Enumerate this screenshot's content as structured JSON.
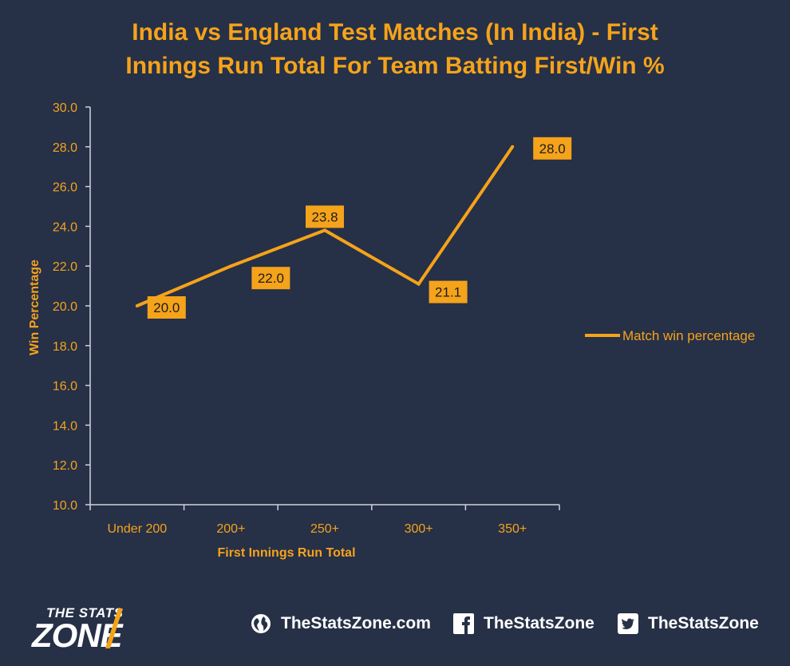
{
  "title_line1": "India vs England Test Matches (In India) - First",
  "title_line2": "Innings Run Total For Team Batting First/Win %",
  "colors": {
    "background": "#263047",
    "accent": "#f5a31a",
    "axis": "#cfd3dc",
    "label_text": "#1d1d1d"
  },
  "chart_data": {
    "type": "line",
    "categories": [
      "Under 200",
      "200+",
      "250+",
      "300+",
      "350+"
    ],
    "series": [
      {
        "name": "Match win percentage",
        "values": [
          20.0,
          22.0,
          23.8,
          21.1,
          28.0
        ]
      }
    ],
    "data_labels": [
      "20.0",
      "22.0",
      "23.8",
      "21.1",
      "28.0"
    ],
    "xlabel": "First Innings Run Total",
    "ylabel": "Win Percentage",
    "ylim": [
      10,
      30
    ],
    "yticks": [
      "10.0",
      "12.0",
      "14.0",
      "16.0",
      "18.0",
      "20.0",
      "22.0",
      "24.0",
      "26.0",
      "28.0",
      "30.0"
    ],
    "grid": false,
    "legend_position": "right"
  },
  "footer": {
    "logo_top": "THE STATS",
    "logo_bottom": "ZONE",
    "website": "TheStatsZone.com",
    "facebook": "TheStatsZone",
    "twitter": "TheStatsZone"
  }
}
